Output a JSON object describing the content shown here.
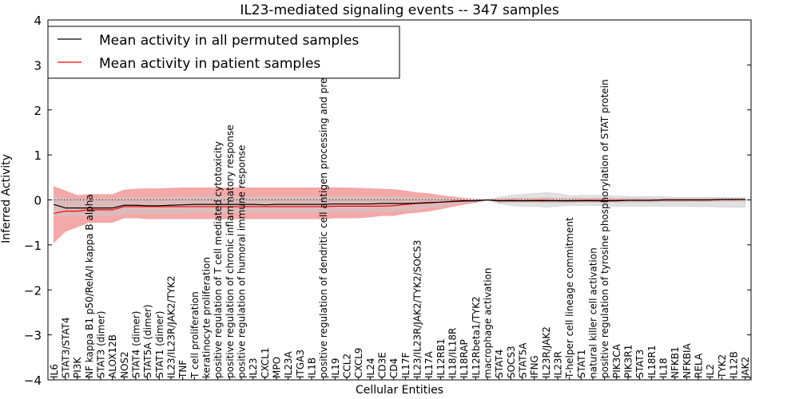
{
  "chart_data": {
    "type": "line",
    "title": "IL23-mediated signaling events -- 347 samples",
    "xlabel": "Cellular Entities",
    "ylabel": "Inferred Activity",
    "ylim": [
      -4,
      4
    ],
    "yticks": [
      -4,
      -3,
      -2,
      -1,
      0,
      1,
      2,
      3,
      4
    ],
    "categories": [
      "IL6",
      "STAT3/STAT4",
      "PI3K",
      "NF kappa B1 p50/RelA/I kappa B alpha",
      "STAT3 (dimer)",
      "ALOX12B",
      "NOS2",
      "STAT4 (dimer)",
      "STAT5A (dimer)",
      "STAT1 (dimer)",
      "IL23/IL23R/JAK2/TYK2",
      "TNF",
      "T cell proliferation",
      "keratinocyte proliferation",
      "positive regulation of T cell mediated cytotoxicity",
      "positive regulation of chronic inflammatory response",
      "positive regulation of humoral immune response",
      "IL23",
      "CXCL1",
      "MPO",
      "IL23A",
      "ITGA3",
      "IL1B",
      "positive regulation of dendritic cell antigen processing and presentation",
      "IL19",
      "CCL2",
      "CXCL9",
      "IL24",
      "CD3E",
      "CD4",
      "IL17F",
      "IL23/IL23R/JAK2/TYK2/SOCS3",
      "IL17A",
      "IL12RB1",
      "IL18/IL18R",
      "IL18RAP",
      "IL12Rbeta1/TYK2",
      "macrophage activation",
      "STAT4",
      "SOCS3",
      "STAT5A",
      "IFNG",
      "IL23R/JAK2",
      "IL23R",
      "T-helper cell lineage commitment",
      "STAT1",
      "natural killer cell activation",
      "positive regulation of tyrosine phosphorylation of STAT protein",
      "PIK3CA",
      "PIK3R1",
      "STAT3",
      "IL18R1",
      "IL18",
      "NFKB1",
      "NFKBIA",
      "RELA",
      "IL2",
      "TYK2",
      "IL12B",
      "JAK2"
    ],
    "series": [
      {
        "name": "Mean activity in all permuted samples",
        "color": "#000000",
        "band_color": "#c8c8c8",
        "values": [
          -0.1,
          -0.18,
          -0.18,
          -0.18,
          -0.18,
          -0.18,
          -0.12,
          -0.12,
          -0.13,
          -0.13,
          -0.12,
          -0.11,
          -0.1,
          -0.1,
          -0.1,
          -0.1,
          -0.1,
          -0.1,
          -0.11,
          -0.1,
          -0.1,
          -0.1,
          -0.1,
          -0.1,
          -0.09,
          -0.09,
          -0.09,
          -0.09,
          -0.08,
          -0.08,
          -0.08,
          -0.07,
          -0.06,
          -0.05,
          -0.03,
          -0.02,
          -0.02,
          0.0,
          -0.02,
          -0.02,
          -0.02,
          -0.02,
          -0.02,
          -0.02,
          -0.02,
          -0.02,
          -0.02,
          -0.02,
          -0.02,
          -0.01,
          -0.01,
          -0.01,
          0.0,
          0.0,
          0.0,
          0.0,
          0.0,
          0.01,
          0.01,
          0.01
        ],
        "lower": [
          -0.35,
          -0.35,
          -0.35,
          -0.35,
          -0.35,
          -0.35,
          -0.3,
          -0.3,
          -0.3,
          -0.3,
          -0.3,
          -0.3,
          -0.28,
          -0.28,
          -0.28,
          -0.28,
          -0.28,
          -0.28,
          -0.28,
          -0.28,
          -0.28,
          -0.28,
          -0.28,
          -0.28,
          -0.26,
          -0.26,
          -0.26,
          -0.26,
          -0.25,
          -0.25,
          -0.22,
          -0.2,
          -0.17,
          -0.14,
          -0.1,
          -0.06,
          -0.04,
          0.0,
          -0.08,
          -0.12,
          -0.14,
          -0.14,
          -0.16,
          -0.14,
          -0.12,
          -0.12,
          -0.12,
          -0.13,
          -0.14,
          -0.14,
          -0.14,
          -0.14,
          -0.14,
          -0.14,
          -0.14,
          -0.15,
          -0.15,
          -0.16,
          -0.16,
          -0.16
        ],
        "upper": [
          0.08,
          0.02,
          0.02,
          0.02,
          0.02,
          0.02,
          0.05,
          0.05,
          0.05,
          0.05,
          0.05,
          0.07,
          0.07,
          0.07,
          0.07,
          0.07,
          0.07,
          0.07,
          0.07,
          0.07,
          0.07,
          0.07,
          0.07,
          0.07,
          0.07,
          0.07,
          0.07,
          0.07,
          0.07,
          0.07,
          0.06,
          0.05,
          0.04,
          0.04,
          0.03,
          0.02,
          0.02,
          0.0,
          0.06,
          0.1,
          0.12,
          0.14,
          0.16,
          0.14,
          0.09,
          0.1,
          0.1,
          0.1,
          0.08,
          0.08,
          0.07,
          0.07,
          0.07,
          0.06,
          0.06,
          0.06,
          0.06,
          0.05,
          0.05,
          0.05
        ]
      },
      {
        "name": "Mean activity in patient samples",
        "color": "#ff0000",
        "band_color": "#f29a9a",
        "values": [
          -0.3,
          -0.25,
          -0.25,
          -0.22,
          -0.22,
          -0.22,
          -0.15,
          -0.15,
          -0.15,
          -0.15,
          -0.15,
          -0.15,
          -0.15,
          -0.15,
          -0.15,
          -0.15,
          -0.15,
          -0.15,
          -0.15,
          -0.15,
          -0.15,
          -0.15,
          -0.15,
          -0.15,
          -0.14,
          -0.14,
          -0.14,
          -0.14,
          -0.14,
          -0.13,
          -0.1,
          -0.08,
          -0.07,
          -0.05,
          -0.04,
          -0.03,
          -0.02,
          0.0,
          -0.02,
          -0.01,
          -0.02,
          -0.01,
          -0.01,
          -0.02,
          -0.02,
          -0.01,
          -0.01,
          -0.01,
          -0.01,
          -0.01,
          -0.01,
          -0.01,
          0.0,
          0.0,
          0.0,
          0.0,
          0.0,
          0.01,
          0.01,
          0.01
        ],
        "lower": [
          -0.95,
          -0.7,
          -0.6,
          -0.5,
          -0.5,
          -0.5,
          -0.4,
          -0.4,
          -0.42,
          -0.42,
          -0.42,
          -0.42,
          -0.42,
          -0.42,
          -0.42,
          -0.42,
          -0.42,
          -0.42,
          -0.42,
          -0.42,
          -0.42,
          -0.42,
          -0.42,
          -0.42,
          -0.4,
          -0.4,
          -0.4,
          -0.38,
          -0.35,
          -0.35,
          -0.3,
          -0.28,
          -0.25,
          -0.2,
          -0.15,
          -0.1,
          -0.06,
          0.0,
          -0.06,
          -0.05,
          -0.05,
          -0.05,
          -0.06,
          -0.06,
          -0.06,
          -0.05,
          -0.05,
          -0.05,
          -0.05,
          -0.05,
          -0.05,
          -0.05,
          -0.04,
          -0.04,
          -0.04,
          -0.04,
          -0.04,
          -0.03,
          -0.03,
          -0.03
        ],
        "upper": [
          0.3,
          0.2,
          0.1,
          0.12,
          0.12,
          0.12,
          0.22,
          0.24,
          0.25,
          0.25,
          0.26,
          0.27,
          0.27,
          0.27,
          0.27,
          0.27,
          0.27,
          0.27,
          0.27,
          0.27,
          0.27,
          0.27,
          0.27,
          0.27,
          0.27,
          0.27,
          0.26,
          0.25,
          0.24,
          0.23,
          0.2,
          0.16,
          0.14,
          0.1,
          0.07,
          0.04,
          0.02,
          0.0,
          0.03,
          0.04,
          0.04,
          0.04,
          0.05,
          0.04,
          0.04,
          0.04,
          0.04,
          0.04,
          0.03,
          0.03,
          0.03,
          0.03,
          0.03,
          0.03,
          0.03,
          0.03,
          0.03,
          0.03,
          0.03,
          0.03
        ]
      }
    ],
    "legend_position": "top-left",
    "zero_line_style": "dotted"
  }
}
